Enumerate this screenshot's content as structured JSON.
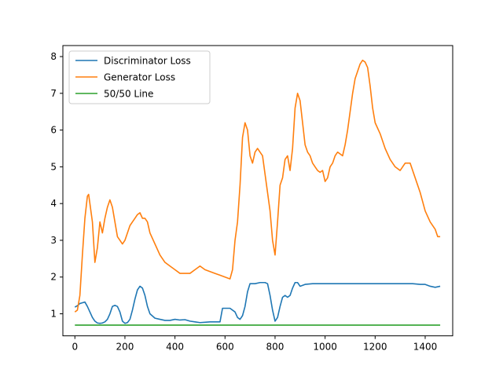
{
  "chart_data": {
    "type": "line",
    "title": "",
    "xlabel": "",
    "ylabel": "",
    "xlim": [
      -48,
      1510
    ],
    "ylim": [
      0.4,
      8.3
    ],
    "x_ticks": [
      0,
      200,
      400,
      600,
      800,
      1000,
      1200,
      1400
    ],
    "y_ticks": [
      1,
      2,
      3,
      4,
      5,
      6,
      7,
      8
    ],
    "grid": false,
    "legend_position": "top-left",
    "series": [
      {
        "name": "Discriminator Loss",
        "color": "#1f77b4",
        "x": [
          0,
          10,
          20,
          30,
          40,
          50,
          60,
          70,
          80,
          90,
          100,
          110,
          120,
          130,
          140,
          150,
          160,
          170,
          180,
          190,
          200,
          210,
          220,
          230,
          240,
          250,
          260,
          270,
          280,
          290,
          300,
          320,
          340,
          360,
          380,
          400,
          420,
          440,
          460,
          480,
          500,
          520,
          540,
          560,
          580,
          590,
          600,
          620,
          640,
          650,
          660,
          670,
          680,
          690,
          700,
          720,
          740,
          760,
          770,
          780,
          790,
          800,
          810,
          820,
          830,
          840,
          850,
          860,
          870,
          880,
          890,
          900,
          920,
          950,
          1000,
          1050,
          1100,
          1150,
          1200,
          1250,
          1300,
          1350,
          1380,
          1400,
          1420,
          1440,
          1460
        ],
        "y": [
          1.18,
          1.22,
          1.28,
          1.3,
          1.32,
          1.2,
          1.05,
          0.9,
          0.8,
          0.75,
          0.74,
          0.75,
          0.78,
          0.85,
          1.0,
          1.2,
          1.23,
          1.2,
          1.05,
          0.8,
          0.74,
          0.76,
          0.85,
          1.1,
          1.4,
          1.65,
          1.75,
          1.7,
          1.5,
          1.2,
          1.0,
          0.88,
          0.85,
          0.82,
          0.82,
          0.85,
          0.83,
          0.84,
          0.8,
          0.78,
          0.76,
          0.77,
          0.78,
          0.78,
          0.78,
          1.15,
          1.15,
          1.15,
          1.05,
          0.9,
          0.85,
          0.95,
          1.2,
          1.6,
          1.82,
          1.82,
          1.85,
          1.85,
          1.82,
          1.5,
          1.1,
          0.8,
          0.9,
          1.2,
          1.45,
          1.5,
          1.45,
          1.5,
          1.7,
          1.85,
          1.85,
          1.75,
          1.8,
          1.82,
          1.82,
          1.82,
          1.82,
          1.82,
          1.82,
          1.82,
          1.82,
          1.82,
          1.8,
          1.8,
          1.75,
          1.72,
          1.75
        ]
      },
      {
        "name": "Generator Loss",
        "color": "#ff7f0e",
        "x": [
          0,
          10,
          20,
          30,
          40,
          50,
          55,
          60,
          70,
          80,
          90,
          100,
          110,
          120,
          130,
          140,
          150,
          160,
          170,
          180,
          190,
          200,
          210,
          220,
          230,
          240,
          250,
          260,
          270,
          280,
          290,
          300,
          320,
          340,
          360,
          380,
          400,
          420,
          440,
          460,
          480,
          500,
          520,
          540,
          560,
          580,
          600,
          620,
          630,
          640,
          650,
          660,
          670,
          680,
          690,
          700,
          710,
          720,
          730,
          740,
          750,
          760,
          770,
          780,
          790,
          800,
          810,
          820,
          830,
          840,
          850,
          860,
          870,
          880,
          890,
          900,
          910,
          920,
          930,
          940,
          950,
          960,
          970,
          980,
          990,
          1000,
          1010,
          1020,
          1030,
          1040,
          1050,
          1060,
          1070,
          1080,
          1090,
          1100,
          1110,
          1120,
          1130,
          1140,
          1150,
          1160,
          1170,
          1180,
          1190,
          1200,
          1220,
          1240,
          1260,
          1280,
          1300,
          1320,
          1340,
          1360,
          1380,
          1400,
          1420,
          1440,
          1450,
          1460
        ],
        "y": [
          1.05,
          1.1,
          1.5,
          2.6,
          3.6,
          4.2,
          4.25,
          4.0,
          3.5,
          2.4,
          2.8,
          3.5,
          3.2,
          3.6,
          3.9,
          4.1,
          3.9,
          3.5,
          3.1,
          3.0,
          2.9,
          3.0,
          3.2,
          3.4,
          3.5,
          3.6,
          3.7,
          3.75,
          3.6,
          3.6,
          3.5,
          3.2,
          2.9,
          2.6,
          2.4,
          2.3,
          2.2,
          2.1,
          2.1,
          2.1,
          2.2,
          2.3,
          2.2,
          2.15,
          2.1,
          2.05,
          2.0,
          1.95,
          2.2,
          3.0,
          3.5,
          4.5,
          5.8,
          6.2,
          6.0,
          5.3,
          5.1,
          5.4,
          5.5,
          5.4,
          5.3,
          4.8,
          4.3,
          3.8,
          3.0,
          2.6,
          3.5,
          4.5,
          4.7,
          5.2,
          5.3,
          4.9,
          5.5,
          6.6,
          7.0,
          6.8,
          6.2,
          5.6,
          5.4,
          5.3,
          5.1,
          5.0,
          4.9,
          4.85,
          4.9,
          4.6,
          4.7,
          5.0,
          5.1,
          5.3,
          5.4,
          5.35,
          5.3,
          5.6,
          6.0,
          6.5,
          7.0,
          7.4,
          7.6,
          7.8,
          7.9,
          7.85,
          7.7,
          7.2,
          6.6,
          6.2,
          5.9,
          5.5,
          5.2,
          5.0,
          4.9,
          5.1,
          5.1,
          4.7,
          4.3,
          3.8,
          3.5,
          3.3,
          3.1,
          3.1
        ]
      },
      {
        "name": "50/50 Line",
        "color": "#2ca02c",
        "x": [
          0,
          1460
        ],
        "y": [
          0.693,
          0.693
        ]
      }
    ]
  }
}
